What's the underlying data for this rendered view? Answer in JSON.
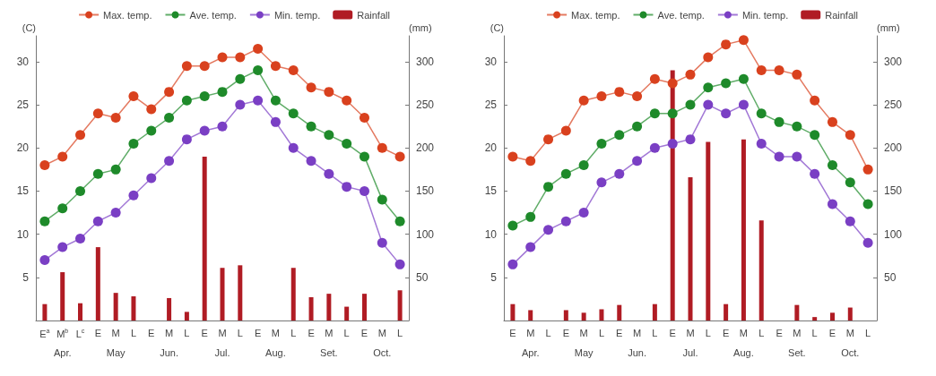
{
  "chart_data": [
    {
      "type": "line",
      "ylabel": "(C)",
      "y2label": "(mm)",
      "legend": "top",
      "marker": "circle",
      "grid": false,
      "categories": [
        "E$^{a}$",
        "M$^{b}$",
        "L$^{c}$",
        "E",
        "M",
        "L",
        "E",
        "M",
        "L",
        "E",
        "M",
        "L",
        "E",
        "M",
        "L",
        "E",
        "M",
        "L",
        "E",
        "M",
        "L"
      ],
      "annotations": [
        "Apr.",
        "May",
        "Jun.",
        "Jul.",
        "Aug.",
        "Set.",
        "Oct."
      ],
      "ylim": [
        0,
        33
      ],
      "yticks": [
        5,
        10,
        15,
        20,
        25,
        30
      ],
      "y2lim": [
        0,
        330
      ],
      "y2ticks": [
        50,
        100,
        150,
        200,
        250,
        300
      ],
      "series": [
        {
          "name": "Max. temp.",
          "color": "#d9411e",
          "values": [
            18,
            19,
            21.5,
            24,
            23.5,
            26,
            24.5,
            26.5,
            29.5,
            29.5,
            30.5,
            30.5,
            31.5,
            29.5,
            29,
            27,
            26.5,
            25.5,
            23.5,
            20,
            19
          ]
        },
        {
          "name": "Ave. temp.",
          "color": "#1e8a2a",
          "values": [
            11.5,
            13,
            15,
            17,
            17.5,
            20.5,
            22,
            23.5,
            25.5,
            26,
            26.5,
            28,
            29,
            25.5,
            24,
            22.5,
            21.5,
            20.5,
            19,
            14,
            11.5
          ]
        },
        {
          "name": "Min. temp.",
          "color": "#7a3fc4",
          "values": [
            7,
            8.5,
            9.5,
            11.5,
            12.5,
            14.5,
            16.5,
            18.5,
            21,
            22,
            22.5,
            25,
            25.5,
            23,
            20,
            18.5,
            17,
            15.5,
            15,
            9,
            6.5
          ]
        },
        {
          "name": "Rainfall",
          "type": "bar",
          "axis": "y2",
          "color": "#b01c24",
          "values": [
            19,
            56,
            20,
            85,
            32,
            28,
            null,
            26,
            10,
            190,
            61,
            64,
            null,
            null,
            61,
            27,
            31,
            16,
            31,
            null,
            35
          ]
        }
      ]
    },
    {
      "type": "line",
      "ylabel": "(C)",
      "y2label": "(mm)",
      "legend": "top",
      "marker": "circle",
      "grid": false,
      "categories": [
        "E",
        "M",
        "L",
        "E",
        "M",
        "L",
        "E",
        "M",
        "L",
        "E",
        "M",
        "L",
        "E",
        "M",
        "L",
        "E",
        "M",
        "L",
        "E",
        "M",
        "L"
      ],
      "annotations": [
        "Apr.",
        "May",
        "Jun.",
        "Jul.",
        "Aug.",
        "Set.",
        "Oct."
      ],
      "ylim": [
        0,
        33
      ],
      "yticks": [
        5,
        10,
        15,
        20,
        25,
        30
      ],
      "y2lim": [
        0,
        330
      ],
      "y2ticks": [
        50,
        100,
        150,
        200,
        250,
        300
      ],
      "series": [
        {
          "name": "Max. temp.",
          "color": "#d9411e",
          "values": [
            19,
            18.5,
            21,
            22,
            25.5,
            26,
            26.5,
            26,
            28,
            27.5,
            28.5,
            30.5,
            32,
            32.5,
            29,
            29,
            28.5,
            25.5,
            23,
            21.5,
            17.5
          ]
        },
        {
          "name": "Ave. temp.",
          "color": "#1e8a2a",
          "values": [
            11,
            12,
            15.5,
            17,
            18,
            20.5,
            21.5,
            22.5,
            24,
            24,
            25,
            27,
            27.5,
            28,
            24,
            23,
            22.5,
            21.5,
            18,
            16,
            13.5
          ]
        },
        {
          "name": "Min. temp.",
          "color": "#7a3fc4",
          "values": [
            6.5,
            8.5,
            10.5,
            11.5,
            12.5,
            16,
            17,
            18.5,
            20,
            20.5,
            21,
            25,
            24,
            25,
            20.5,
            19,
            19,
            17,
            13.5,
            11.5,
            9
          ]
        },
        {
          "name": "Rainfall",
          "type": "bar",
          "axis": "y2",
          "color": "#b01c24",
          "values": [
            19,
            12,
            null,
            12,
            9,
            13,
            18,
            null,
            19,
            290,
            166,
            207,
            19,
            210,
            116,
            null,
            18,
            4,
            9,
            15,
            null
          ]
        }
      ]
    }
  ]
}
